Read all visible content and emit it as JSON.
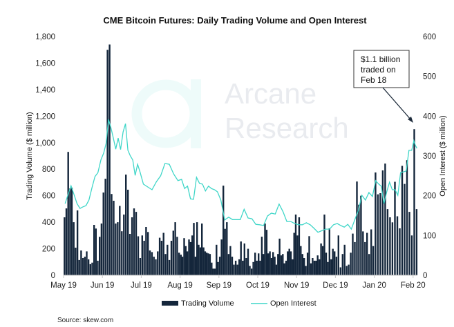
{
  "chart_data": {
    "type": "bar+line",
    "title": "CME Bitcoin Futures: Daily Trading Volume and Open Interest",
    "ylabel_left": "Trading Volume ($ million)",
    "ylabel_right": "Open Interest ($ million)",
    "ylim_left": [
      0,
      1800
    ],
    "ylim_right": [
      0,
      600
    ],
    "yticks_left": [
      "0",
      "200",
      "400",
      "600",
      "800",
      "1,000",
      "1,200",
      "1,400",
      "1,600",
      "1,800"
    ],
    "yticks_right": [
      "0",
      "100",
      "200",
      "300",
      "400",
      "500",
      "600"
    ],
    "xticks": [
      "May 19",
      "Jun 19",
      "Jul 19",
      "Aug 19",
      "Sep 19",
      "Oct 19",
      "Nov 19",
      "Dec 19",
      "Jan 20",
      "Feb 20"
    ],
    "grid": false,
    "legend_position": "bottom",
    "series": [
      {
        "name": "Trading Volume",
        "kind": "bar",
        "axis": "left",
        "color": "#14263b",
        "values_by_month": [
          [
            437,
            504,
            930,
            655,
            660,
            400,
            208,
            489,
            115,
            187,
            130,
            140,
            180,
            120,
            84,
            95,
            380,
            352,
            110,
            290,
            390
          ],
          [
            624,
            728,
            1700,
            1740,
            613,
            562,
            390,
            400,
            523,
            332,
            458,
            759,
            645,
            312,
            437,
            504,
            478,
            294,
            130
          ],
          [
            300,
            260,
            364,
            326,
            187,
            175,
            140,
            120,
            180,
            283,
            260,
            320,
            160,
            230,
            115,
            260,
            336,
            400,
            290,
            170
          ],
          [
            155,
            140,
            280,
            220,
            180,
            270,
            250,
            300,
            395,
            140,
            400,
            230,
            210,
            390,
            210,
            180,
            170,
            165,
            160,
            95,
            50,
            50,
            230,
            100
          ],
          [
            140,
            270,
            676,
            350,
            400,
            160,
            220,
            140,
            80,
            110,
            80,
            120,
            255,
            110,
            240,
            130,
            200,
            70,
            50,
            100,
            170,
            110
          ],
          [
            165,
            110,
            291,
            160,
            390,
            343,
            165,
            180,
            130,
            175,
            140,
            80,
            160,
            276,
            150,
            160,
            90,
            110,
            180,
            200,
            180,
            120,
            320,
            458
          ],
          [
            300,
            437,
            220,
            160,
            130,
            70,
            170,
            295,
            90,
            130,
            110,
            110,
            150,
            120,
            240,
            220,
            458,
            170,
            100,
            354,
            120,
            200,
            180
          ],
          [
            140,
            300,
            60,
            160,
            230,
            70,
            80,
            170,
            314,
            250,
            707,
            532,
            600,
            331,
            250,
            320,
            160,
            346,
            220
          ],
          [
            775,
            610,
            619,
            791,
            842,
            499,
            437,
            399,
            705,
            445,
            354,
            825,
            689,
            868,
            478,
            300
          ],
          [
            1102,
            499
          ]
        ]
      },
      {
        "name": "Open Interest",
        "kind": "line",
        "axis": "right",
        "color": "#3fd6c8",
        "values_by_month": [
          [
            180,
            203,
            225,
            203,
            180,
            168,
            172,
            175,
            189,
            220,
            248,
            258,
            290
          ],
          [
            307,
            331,
            392,
            371,
            345,
            317,
            345,
            316,
            360,
            381,
            314,
            300,
            290,
            251,
            279,
            260
          ],
          [
            229,
            222,
            215,
            235,
            250,
            281,
            279,
            255,
            238
          ],
          [
            241,
            218,
            224,
            192,
            191,
            246,
            231,
            229,
            212,
            224,
            218,
            215,
            210
          ],
          [
            189,
            139,
            146,
            140,
            140,
            140,
            166,
            144,
            142,
            128
          ],
          [
            127,
            125,
            149,
            156,
            154,
            179,
            160,
            135,
            135,
            130
          ],
          [
            127,
            127,
            132,
            127,
            118,
            108,
            112,
            116,
            116,
            127
          ],
          [
            130,
            125,
            121,
            128,
            116,
            140,
            163,
            201,
            189,
            208,
            198
          ],
          [
            238,
            230,
            224,
            180,
            210,
            234,
            215,
            215,
            201,
            258,
            260,
            262,
            314,
            314
          ],
          [
            338,
            326,
            319
          ]
        ]
      }
    ],
    "annotation": {
      "lines": [
        "$1.1 billion",
        "traded on",
        "Feb 18"
      ]
    },
    "watermark": {
      "line1": "Arcane",
      "line2": "Research"
    },
    "source": "Source: skew.com"
  }
}
